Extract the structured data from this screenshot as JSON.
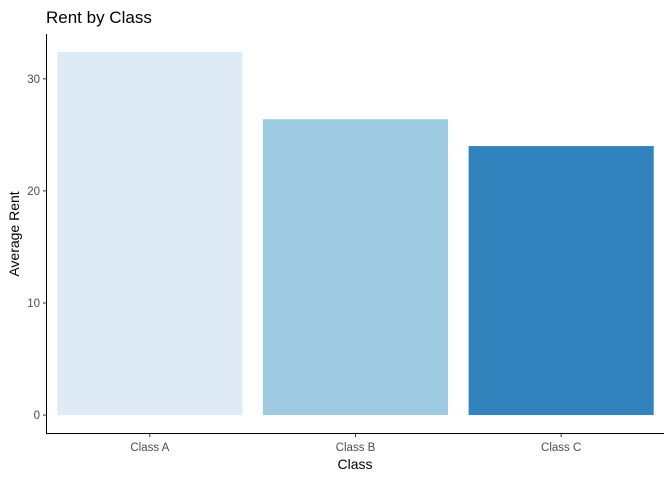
{
  "chart_data": {
    "type": "bar",
    "title": "Rent by Class",
    "xlabel": "Class",
    "ylabel": "Average Rent",
    "categories": [
      "Class A",
      "Class B",
      "Class C"
    ],
    "values": [
      32.4,
      26.4,
      24.0
    ],
    "colors": [
      "#deebf7",
      "#9ecae1",
      "#3182bd"
    ],
    "ylim": [
      -1.6,
      34
    ],
    "yticks": [
      0,
      10,
      20,
      30
    ],
    "grid": false,
    "legend": "none"
  }
}
